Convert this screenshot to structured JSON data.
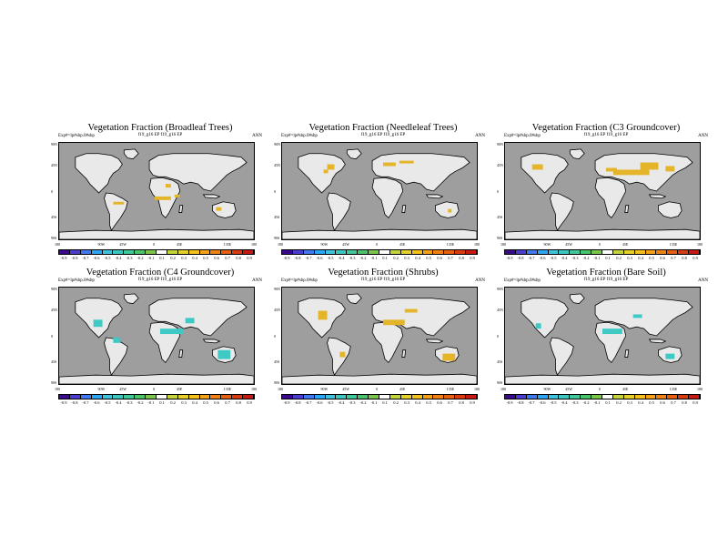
{
  "experiment_label": "Exp#=lp#sbp.0#sbp",
  "case_label": "f19_g16 EP   f19_g16 EP",
  "annual_label": "ANN",
  "y_labels": [
    "90N",
    "45N",
    "0",
    "45S",
    "90S"
  ],
  "x_labels": [
    "180",
    "90W",
    "45W",
    "0",
    "45E",
    "135E",
    "180"
  ],
  "colorbar": {
    "labels": [
      "-0.9",
      "-0.8",
      "-0.7",
      "-0.6",
      "-0.5",
      "-0.4",
      "-0.3",
      "-0.2",
      "-0.1",
      "0.1",
      "0.2",
      "0.3",
      "0.4",
      "0.5",
      "0.6",
      "0.7",
      "0.8",
      "0.9"
    ],
    "colors": [
      "#3a0a8c",
      "#4b3cd0",
      "#3f78f0",
      "#2aa6f4",
      "#3fc3dc",
      "#3ec7be",
      "#3fc99a",
      "#49c46a",
      "#7cc54c",
      "#ffffff",
      "#c2d33b",
      "#e4cf2b",
      "#f4c01c",
      "#f6a018",
      "#f08114",
      "#e66010",
      "#d83b10",
      "#c81814"
    ]
  },
  "panels": [
    {
      "title": "Vegetation Fraction (Broadleaf Trees)",
      "highlight": "#e4b429"
    },
    {
      "title": "Vegetation Fraction (Needleleaf Trees)",
      "highlight": "#e4b429"
    },
    {
      "title": "Vegetation Fraction (C3 Groundcover)",
      "highlight": "#e4b429"
    },
    {
      "title": "Vegetation Fraction (C4 Groundcover)",
      "highlight": "#3ec9c4"
    },
    {
      "title": "Vegetation Fraction (Shrubs)",
      "highlight": "#e4b429"
    },
    {
      "title": "Vegetation Fraction (Bare Soil)",
      "highlight": "#3ec9c4"
    }
  ]
}
